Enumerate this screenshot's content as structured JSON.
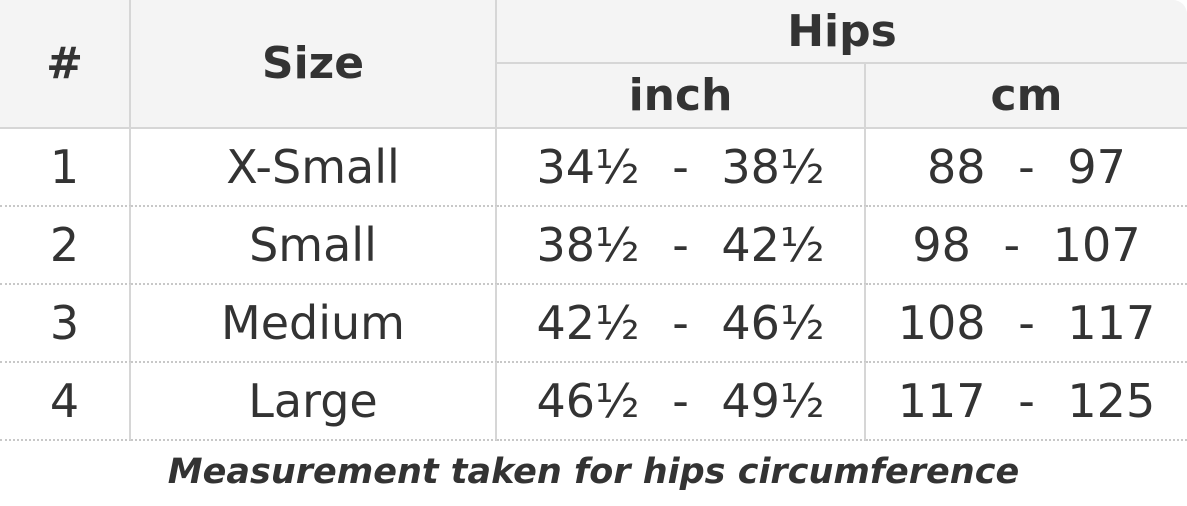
{
  "table": {
    "header": {
      "number": "#",
      "size": "Size",
      "group": "Hips",
      "inch": "inch",
      "cm": "cm"
    },
    "rows": [
      [
        "1",
        "X-Small",
        "34½ - 38½",
        "88 - 97"
      ],
      [
        "2",
        "Small",
        "38½ - 42½",
        "98 - 107"
      ],
      [
        "3",
        "Medium",
        "42½ - 46½",
        "108 - 117"
      ],
      [
        "4",
        "Large",
        "46½ - 49½",
        "117 - 125"
      ]
    ]
  },
  "caption": "Measurement taken for hips circumference"
}
